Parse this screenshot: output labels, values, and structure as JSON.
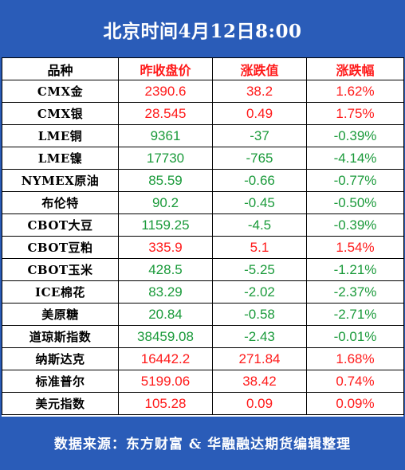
{
  "header": {
    "title": "北京时间4月12日8:00"
  },
  "table": {
    "columns": [
      "品种",
      "昨收盘价",
      "涨跌值",
      "涨跌幅"
    ],
    "rows": [
      {
        "name": "CMX金",
        "close": "2390.6",
        "change": "38.2",
        "pct": "1.62%",
        "dir": "up"
      },
      {
        "name": "CMX银",
        "close": "28.545",
        "change": "0.49",
        "pct": "1.75%",
        "dir": "up"
      },
      {
        "name": "LME铜",
        "close": "9361",
        "change": "-37",
        "pct": "-0.39%",
        "dir": "down"
      },
      {
        "name": "LME镍",
        "close": "17730",
        "change": "-765",
        "pct": "-4.14%",
        "dir": "down"
      },
      {
        "name": "NYMEX原油",
        "close": "85.59",
        "change": "-0.66",
        "pct": "-0.77%",
        "dir": "down"
      },
      {
        "name": "布伦特",
        "close": "90.2",
        "change": "-0.45",
        "pct": "-0.50%",
        "dir": "down"
      },
      {
        "name": "CBOT大豆",
        "close": "1159.25",
        "change": "-4.5",
        "pct": "-0.39%",
        "dir": "down"
      },
      {
        "name": "CBOT豆粕",
        "close": "335.9",
        "change": "5.1",
        "pct": "1.54%",
        "dir": "up"
      },
      {
        "name": "CBOT玉米",
        "close": "428.5",
        "change": "-5.25",
        "pct": "-1.21%",
        "dir": "down"
      },
      {
        "name": "ICE棉花",
        "close": "83.29",
        "change": "-2.02",
        "pct": "-2.37%",
        "dir": "down"
      },
      {
        "name": "美原糖",
        "close": "20.84",
        "change": "-0.58",
        "pct": "-2.71%",
        "dir": "down"
      },
      {
        "name": "道琼斯指数",
        "close": "38459.08",
        "change": "-2.43",
        "pct": "-0.01%",
        "dir": "down"
      },
      {
        "name": "纳斯达克",
        "close": "16442.2",
        "change": "271.84",
        "pct": "1.68%",
        "dir": "up"
      },
      {
        "name": "标准普尔",
        "close": "5199.06",
        "change": "38.42",
        "pct": "0.74%",
        "dir": "up"
      },
      {
        "name": "美元指数",
        "close": "105.28",
        "change": "0.09",
        "pct": "0.09%",
        "dir": "up"
      }
    ]
  },
  "footer": {
    "source": "数据来源：东方财富 & 华融融达期货编辑整理"
  },
  "colors": {
    "header_bg": "#2a5cb8",
    "up": "#ff1a1a",
    "down": "#1a9a3a"
  }
}
